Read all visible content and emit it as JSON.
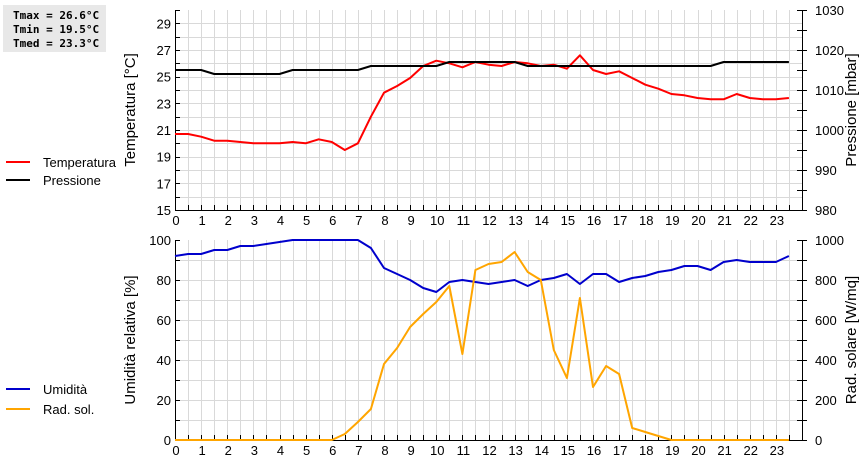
{
  "stats": {
    "tmax": "Tmax = 26.6°C",
    "tmin": "Tmin = 19.5°C",
    "tmed": "Tmed = 23.3°C"
  },
  "legend_top": [
    {
      "label": "Temperatura",
      "color": "#ff0000"
    },
    {
      "label": "Pressione",
      "color": "#000000"
    }
  ],
  "legend_bottom": [
    {
      "label": "Umidità",
      "color": "#0000cc"
    },
    {
      "label": "Rad. sol.",
      "color": "#ffa500"
    }
  ],
  "chart_data": [
    {
      "type": "line",
      "title": "",
      "xlabel": "",
      "ylabel": "Temperatura [°C]",
      "y2label": "Pressione [mbar]",
      "xlim": [
        0,
        24
      ],
      "ylim": [
        15,
        30
      ],
      "y2lim": [
        980,
        1030
      ],
      "xticks": [
        0,
        1,
        2,
        3,
        4,
        5,
        6,
        7,
        8,
        9,
        10,
        11,
        12,
        13,
        14,
        15,
        16,
        17,
        18,
        19,
        20,
        21,
        22,
        23
      ],
      "yticks": [
        15,
        17,
        19,
        21,
        23,
        25,
        27,
        29
      ],
      "y2ticks": [
        980,
        990,
        1000,
        1010,
        1020,
        1030
      ],
      "grid": true,
      "legend_position": "left",
      "x": [
        0,
        0.5,
        1,
        1.5,
        2,
        2.5,
        3,
        3.5,
        4,
        4.5,
        5,
        5.5,
        6,
        6.5,
        7,
        7.5,
        8,
        8.5,
        9,
        9.5,
        10,
        10.5,
        11,
        11.5,
        12,
        12.5,
        13,
        13.5,
        14,
        14.5,
        15,
        15.5,
        16,
        16.5,
        17,
        17.5,
        18,
        18.5,
        19,
        19.5,
        20,
        20.5,
        21,
        21.5,
        22,
        22.5,
        23,
        23.5
      ],
      "series": [
        {
          "name": "Temperatura",
          "axis": "left",
          "color": "#ff0000",
          "values": [
            20.7,
            20.7,
            20.5,
            20.2,
            20.2,
            20.1,
            20.0,
            20.0,
            20.0,
            20.1,
            20.0,
            20.3,
            20.1,
            19.5,
            20.0,
            22.0,
            23.8,
            24.3,
            24.9,
            25.8,
            26.2,
            26.0,
            25.7,
            26.1,
            25.9,
            25.8,
            26.1,
            26.0,
            25.8,
            25.9,
            25.6,
            26.6,
            25.5,
            25.2,
            25.4,
            24.9,
            24.4,
            24.1,
            23.7,
            23.6,
            23.4,
            23.3,
            23.3,
            23.7,
            23.4,
            23.3,
            23.3,
            23.4
          ]
        },
        {
          "name": "Pressione",
          "axis": "right",
          "color": "#000000",
          "values": [
            1015,
            1015,
            1015,
            1014,
            1014,
            1014,
            1014,
            1014,
            1014,
            1015,
            1015,
            1015,
            1015,
            1015,
            1015,
            1016,
            1016,
            1016,
            1016,
            1016,
            1016,
            1017,
            1017,
            1017,
            1017,
            1017,
            1017,
            1016,
            1016,
            1016,
            1016,
            1016,
            1016,
            1016,
            1016,
            1016,
            1016,
            1016,
            1016,
            1016,
            1016,
            1016,
            1017,
            1017,
            1017,
            1017,
            1017,
            1017
          ]
        }
      ]
    },
    {
      "type": "line",
      "title": "",
      "xlabel": "",
      "ylabel": "Umidità relativa [%]",
      "y2label": "Rad. solare [W/mq]",
      "xlim": [
        0,
        24
      ],
      "ylim": [
        0,
        100
      ],
      "y2lim": [
        0,
        1000
      ],
      "xticks": [
        0,
        1,
        2,
        3,
        4,
        5,
        6,
        7,
        8,
        9,
        10,
        11,
        12,
        13,
        14,
        15,
        16,
        17,
        18,
        19,
        20,
        21,
        22,
        23
      ],
      "yticks": [
        0,
        20,
        40,
        60,
        80,
        100
      ],
      "y2ticks": [
        0,
        200,
        400,
        600,
        800,
        1000
      ],
      "grid": true,
      "legend_position": "left",
      "x": [
        0,
        0.5,
        1,
        1.5,
        2,
        2.5,
        3,
        3.5,
        4,
        4.5,
        5,
        5.5,
        6,
        6.5,
        7,
        7.5,
        8,
        8.5,
        9,
        9.5,
        10,
        10.5,
        11,
        11.5,
        12,
        12.5,
        13,
        13.5,
        14,
        14.5,
        15,
        15.5,
        16,
        16.5,
        17,
        17.5,
        18,
        18.5,
        19,
        19.5,
        20,
        20.5,
        21,
        21.5,
        22,
        22.5,
        23,
        23.5
      ],
      "series": [
        {
          "name": "Umidità",
          "axis": "left",
          "color": "#0000cc",
          "values": [
            92,
            93,
            93,
            95,
            95,
            97,
            97,
            98,
            99,
            100,
            100,
            100,
            100,
            100,
            100,
            96,
            86,
            83,
            80,
            76,
            74,
            79,
            80,
            79,
            78,
            79,
            80,
            77,
            80,
            81,
            83,
            78,
            83,
            83,
            79,
            81,
            82,
            84,
            85,
            87,
            87,
            85,
            89,
            90,
            89,
            89,
            89,
            92
          ]
        },
        {
          "name": "Rad. sol.",
          "axis": "right",
          "color": "#ffa500",
          "values": [
            0,
            0,
            0,
            0,
            0,
            0,
            0,
            0,
            0,
            0,
            0,
            0,
            0,
            30,
            90,
            155,
            380,
            460,
            565,
            630,
            690,
            770,
            430,
            850,
            880,
            890,
            940,
            840,
            800,
            450,
            310,
            710,
            265,
            370,
            330,
            60,
            40,
            20,
            0,
            0,
            0,
            0,
            0,
            0,
            0,
            0,
            0,
            0
          ]
        }
      ]
    }
  ]
}
